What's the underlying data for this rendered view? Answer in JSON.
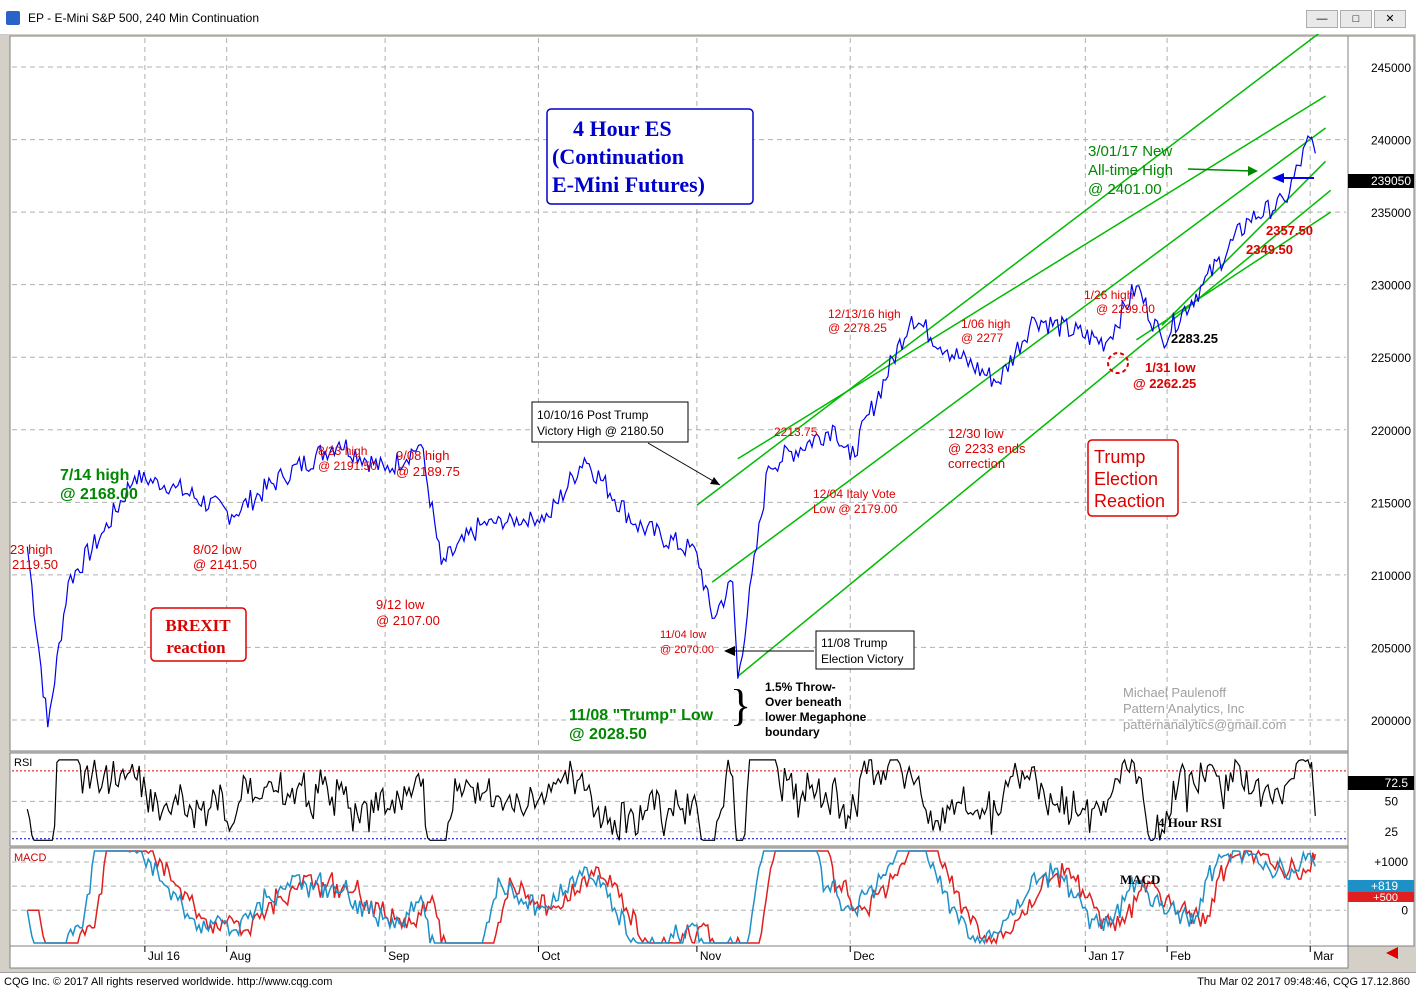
{
  "window": {
    "title": "EP - E-Mini S&P 500, 240 Min Continuation",
    "buttons": {
      "minimize": "—",
      "maximize": "□",
      "close": "✕"
    }
  },
  "status_bar": {
    "left": "CQG Inc. © 2017 All rights reserved worldwide. http://www.cqg.com",
    "right": "Thu Mar 02 2017 09:48:46, CQG 17.12.860"
  },
  "colors": {
    "price": "#0000ee",
    "channel": "#00bb00",
    "annotation_red": "#dd0000",
    "annotation_green": "#008800",
    "rsi_line": "#000000",
    "macd_line": "#1e90c8",
    "signal_line": "#e02020",
    "panel_bg": "#ffffff"
  },
  "chart_data": [
    {
      "type": "line",
      "title": "",
      "series_name": "EP 240 Min",
      "x_ticks": [
        "Jul 16",
        "Aug",
        "Sep",
        "Oct",
        "Nov",
        "Dec",
        "Jan 17",
        "Feb",
        "Mar"
      ],
      "ylim": [
        1980,
        2470
      ],
      "y_ticks": [
        2000,
        2050,
        2100,
        2150,
        2200,
        2250,
        2300,
        2350,
        2400,
        2450
      ],
      "y_tick_labels": [
        "200000",
        "205000",
        "210000",
        "215000",
        "220000",
        "225000",
        "230000",
        "235000",
        "240000",
        "245000"
      ],
      "last_value_label": "239050",
      "last_value": 2390.5,
      "grid": true,
      "x_dates": [
        "2016-06-23",
        "2016-06-27",
        "2016-07-01",
        "2016-07-08",
        "2016-07-14",
        "2016-07-22",
        "2016-08-02",
        "2016-08-12",
        "2016-08-23",
        "2016-09-01",
        "2016-09-08",
        "2016-09-12",
        "2016-09-20",
        "2016-10-03",
        "2016-10-10",
        "2016-10-20",
        "2016-11-01",
        "2016-11-04",
        "2016-11-08",
        "2016-11-09",
        "2016-11-15",
        "2016-11-28",
        "2016-12-01",
        "2016-12-13",
        "2016-12-20",
        "2016-12-30",
        "2017-01-06",
        "2017-01-20",
        "2017-01-26",
        "2017-01-31",
        "2017-02-08",
        "2017-02-17",
        "2017-02-24",
        "2017-03-01",
        "2017-03-02"
      ],
      "prices": [
        2119.5,
        1995,
        2095,
        2130,
        2168,
        2160,
        2141.5,
        2168,
        2191.5,
        2172,
        2189.75,
        2107,
        2135,
        2140,
        2180.5,
        2135,
        2115,
        2070,
        2095,
        2028.5,
        2175,
        2202,
        2179,
        2278.25,
        2255,
        2233,
        2277,
        2260,
        2299,
        2262.25,
        2300,
        2345,
        2357.5,
        2401,
        2390.5
      ],
      "channel_lines": [
        {
          "name": "upper-megaphone",
          "from": [
            "2016-11-01",
            2148
          ],
          "to": [
            "2017-03-03",
            2474
          ]
        },
        {
          "name": "upper-channel",
          "from": [
            "2016-11-09",
            2180
          ],
          "to": [
            "2017-03-04",
            2430
          ]
        },
        {
          "name": "mid-channel",
          "from": [
            "2016-11-04",
            2095
          ],
          "to": [
            "2017-03-04",
            2408
          ]
        },
        {
          "name": "lower-megaphone",
          "from": [
            "2016-11-09",
            2030
          ],
          "to": [
            "2017-03-05",
            2365
          ]
        },
        {
          "name": "steep-upper",
          "from": [
            "2017-01-31",
            2272
          ],
          "to": [
            "2017-03-04",
            2385
          ]
        },
        {
          "name": "steep-lower",
          "from": [
            "2017-01-26",
            2262
          ],
          "to": [
            "2017-03-05",
            2350
          ]
        }
      ],
      "annotations": [
        {
          "text": "23 high",
          "color": "red"
        },
        {
          "text": "2119.50",
          "color": "red"
        },
        {
          "text": "7/14 high",
          "color": "green"
        },
        {
          "text": "@ 2168.00",
          "color": "green"
        },
        {
          "text": "8/02 low",
          "color": "red"
        },
        {
          "text": "@ 2141.50",
          "color": "red"
        },
        {
          "text": "8/23 high",
          "color": "red"
        },
        {
          "text": "@ 2191.50",
          "color": "red"
        },
        {
          "text": "9/08 high",
          "color": "red"
        },
        {
          "text": "@ 2189.75",
          "color": "red"
        },
        {
          "text": "9/12 low",
          "color": "red"
        },
        {
          "text": "@ 2107.00",
          "color": "red"
        },
        {
          "text": "11/04 low",
          "color": "red"
        },
        {
          "text": "@ 2070.00",
          "color": "red"
        },
        {
          "text": "11/08 \"Trump\" Low",
          "color": "green"
        },
        {
          "text": "@ 2028.50",
          "color": "green"
        },
        {
          "text": "2213.75",
          "color": "red"
        },
        {
          "text": "12/04 Italy Vote",
          "color": "red"
        },
        {
          "text": "Low @ 2179.00",
          "color": "red"
        },
        {
          "text": "12/13/16 high",
          "color": "red"
        },
        {
          "text": "@ 2278.25",
          "color": "red"
        },
        {
          "text": "1/06 high",
          "color": "red"
        },
        {
          "text": "@ 2277",
          "color": "red"
        },
        {
          "text": "12/30 low",
          "color": "red"
        },
        {
          "text": "@ 2233 ends",
          "color": "red"
        },
        {
          "text": "correction",
          "color": "red"
        },
        {
          "text": "1/26 high",
          "color": "red"
        },
        {
          "text": "@ 2299.00",
          "color": "red"
        },
        {
          "text": "2283.25",
          "color": "black"
        },
        {
          "text": "1/31 low",
          "color": "red"
        },
        {
          "text": "@ 2262.25",
          "color": "red"
        },
        {
          "text": "2357.50",
          "color": "red"
        },
        {
          "text": "2349.50",
          "color": "red"
        },
        {
          "text": "3/01/17 New",
          "color": "green"
        },
        {
          "text": "All-time High",
          "color": "green"
        },
        {
          "text": "@ 2401.00",
          "color": "green"
        }
      ],
      "boxes": {
        "title_box": [
          "4 Hour ES",
          "(Continuation",
          "E-Mini Futures)"
        ],
        "brexit_box": [
          "BREXIT",
          "reaction"
        ],
        "trump_box": [
          "Trump",
          "Election",
          "Reaction"
        ],
        "post_trump_box": [
          "10/10/16 Post Trump",
          "Victory High @ 2180.50"
        ],
        "election_box": [
          "11/08 Trump",
          "Election Victory"
        ],
        "throwover_note": [
          "1.5% Throw-",
          "Over beneath",
          "lower Megaphone",
          "boundary"
        ],
        "brace": "}"
      },
      "watermark": [
        "Michael Paulenoff",
        "Pattern Analytics, Inc",
        "patternanalytics@gmail.com"
      ]
    },
    {
      "type": "line",
      "title": "RSI",
      "series_name": "4 Hour RSI",
      "ylim": [
        15,
        88
      ],
      "y_ticks": [
        25,
        50
      ],
      "y_tick_labels": [
        "25",
        "50"
      ],
      "reference_lines": [
        25,
        75
      ],
      "last_value_label": "72.5",
      "last_value": 72.5
    },
    {
      "type": "line",
      "title": "MACD",
      "series_name": "MACD",
      "ylim": [
        -700,
        1250
      ],
      "y_ticks": [
        1000,
        500,
        0
      ],
      "y_tick_labels": [
        "+1000",
        "+500",
        "0"
      ],
      "macd_last_label": "+819",
      "signal_last_label": "+500"
    }
  ]
}
